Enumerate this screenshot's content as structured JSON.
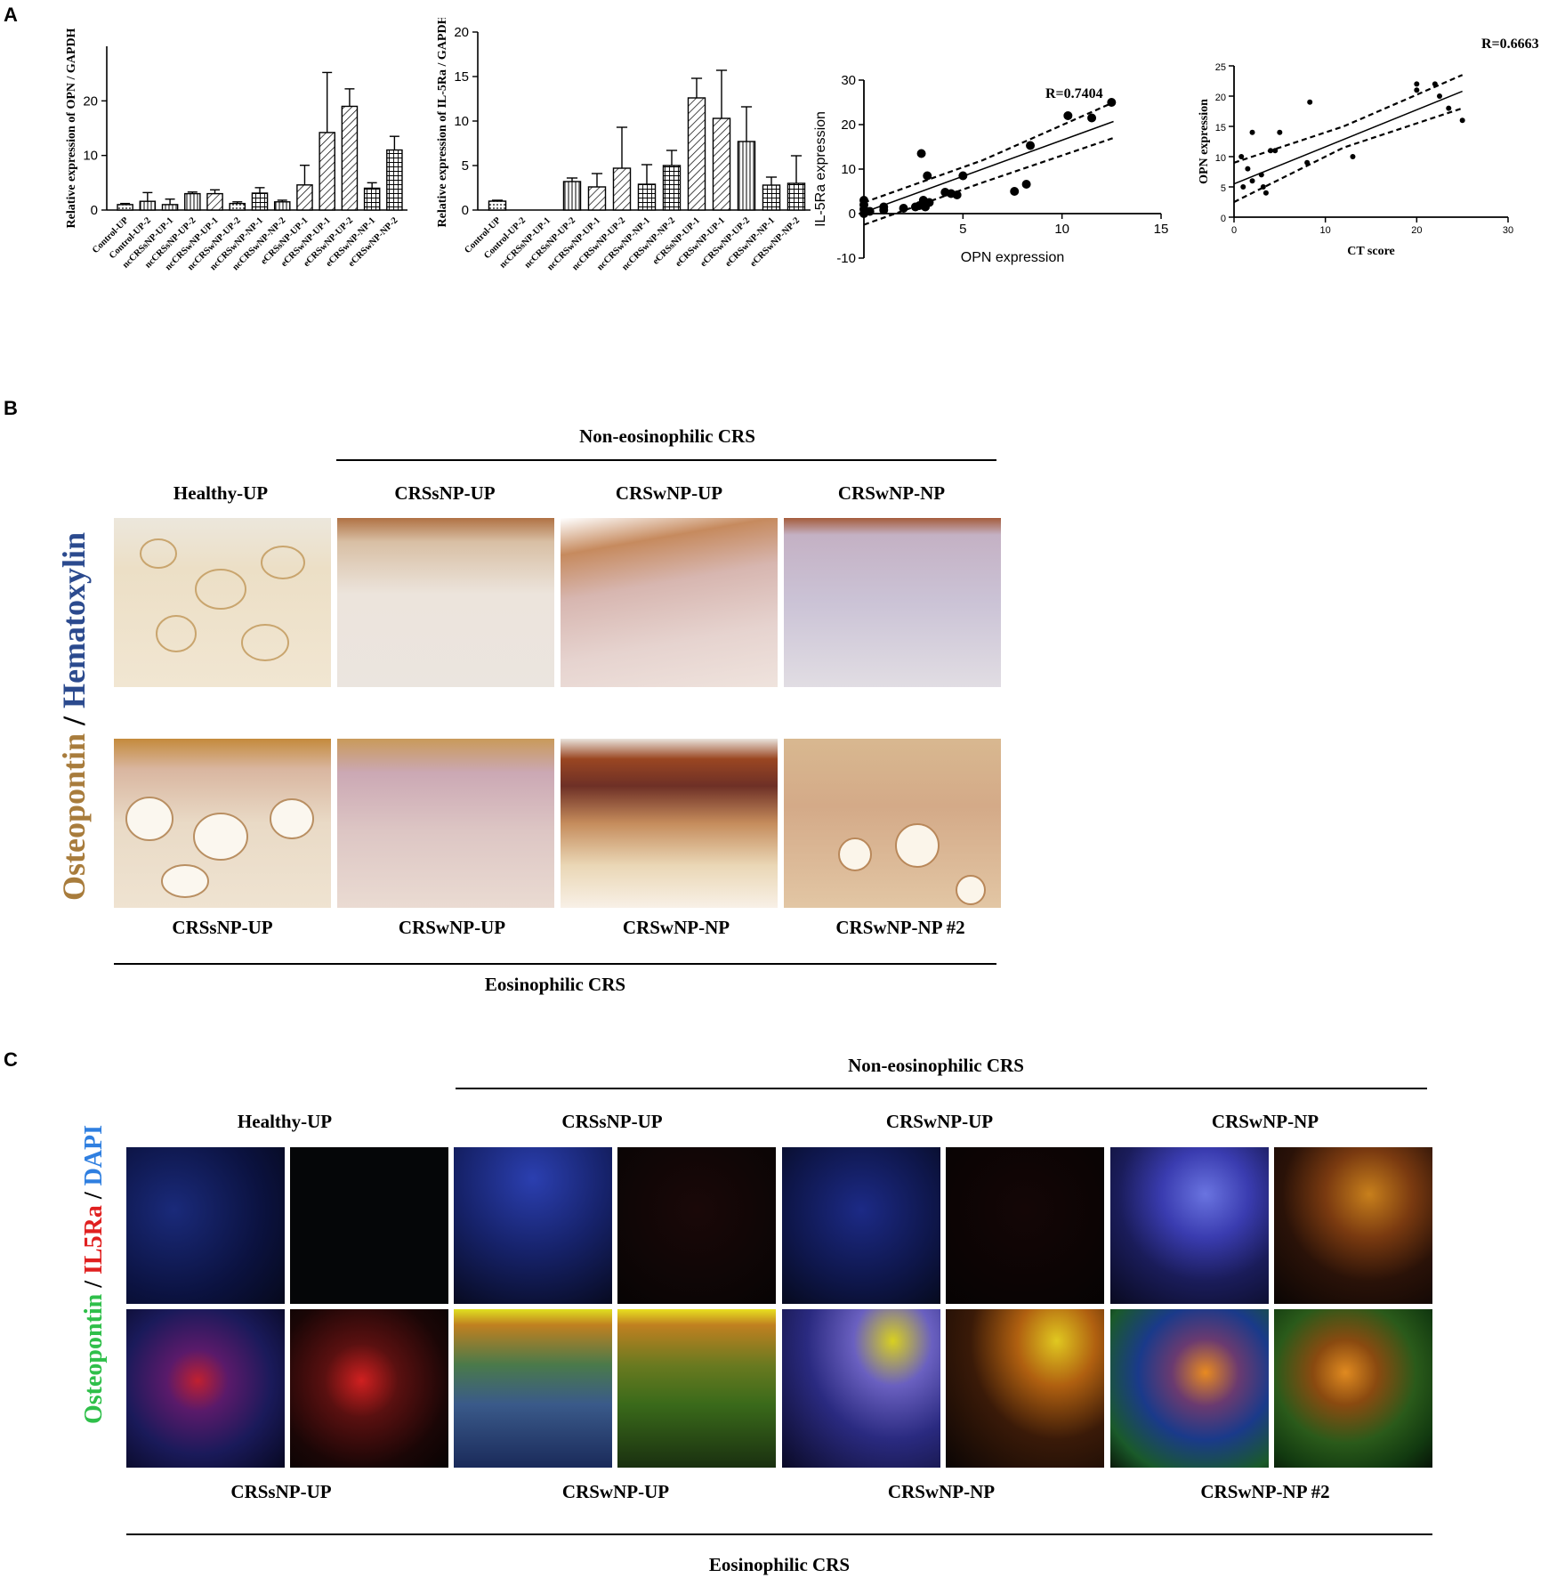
{
  "panels": {
    "a": "A",
    "b": "B",
    "c": "C"
  },
  "chart_data": [
    {
      "type": "bar",
      "ylabel": "Relative expression of OPN / GAPDH",
      "ylim": [
        0,
        30
      ],
      "yticks": [
        0,
        10,
        20
      ],
      "categories": [
        "Control-UP",
        "Control-UP-2",
        "ncCRSsNP-UP-1",
        "ncCRSsNP-UP-2",
        "ncCRSwNP-UP-1",
        "ncCRSwNP-UP-2",
        "ncCRSwNP-NP-1",
        "ncCRSwNP-NP-2",
        "eCRSsNP-UP-1",
        "eCRSwNP-UP-1",
        "eCRSwNP-UP-2",
        "eCRSwNP-NP-1",
        "eCRSwNP-NP-2"
      ],
      "values": [
        1.0,
        1.6,
        1.0,
        3.0,
        3.0,
        1.2,
        3.1,
        1.5,
        4.6,
        14.2,
        19.0,
        4.0,
        11.0
      ],
      "errors": [
        0.2,
        1.6,
        1.0,
        0.3,
        0.7,
        0.3,
        1.0,
        0.3,
        3.6,
        11.0,
        3.2,
        1.0,
        2.5
      ],
      "patterns": [
        "dots",
        "vlines",
        "vlines",
        "vlines",
        "diag",
        "dots",
        "grid",
        "vlines",
        "diag",
        "diag",
        "diag",
        "grid",
        "grid"
      ]
    },
    {
      "type": "bar",
      "ylabel": "Relative expression of IL-5Ra / GAPDH",
      "ylim": [
        0,
        20
      ],
      "yticks": [
        0,
        5,
        10,
        15,
        20
      ],
      "categories": [
        "Control-UP",
        "Control-UP-2",
        "ncCRSsNP-UP-1",
        "ncCRSsNP-UP-2",
        "ncCRSwNP-UP-1",
        "ncCRSwNP-UP-2",
        "ncCRSwNP-NP-1",
        "ncCRSwNP-NP-2",
        "eCRSsNP-UP-1",
        "eCRSwNP-UP-1",
        "eCRSwNP-UP-2",
        "eCRSwNP-NP-1",
        "eCRSwNP-NP-2"
      ],
      "values": [
        1.0,
        0,
        0,
        3.2,
        2.6,
        4.7,
        2.9,
        5.0,
        12.6,
        10.3,
        7.7,
        2.8,
        3.0
      ],
      "errors": [
        0.1,
        0,
        0,
        0.4,
        1.5,
        4.6,
        2.2,
        1.7,
        2.2,
        5.4,
        3.9,
        0.9,
        3.1
      ],
      "patterns": [
        "dots",
        "none",
        "none",
        "vlines",
        "diag",
        "diag",
        "grid",
        "grid",
        "diag",
        "diag",
        "vlines",
        "grid",
        "grid"
      ]
    },
    {
      "type": "scatter",
      "xlabel": "OPN expression",
      "ylabel": "IL-5Ra expression",
      "annotation": "R=0.7404",
      "xlim": [
        0,
        15
      ],
      "ylim": [
        -10,
        30
      ],
      "xticks": [
        5,
        10,
        15
      ],
      "yticks": [
        -10,
        0,
        10,
        20,
        30
      ],
      "points": [
        [
          0,
          0
        ],
        [
          0,
          1
        ],
        [
          0,
          2
        ],
        [
          0,
          3
        ],
        [
          0.3,
          0.5
        ],
        [
          1,
          0.8
        ],
        [
          1,
          1.5
        ],
        [
          2,
          1.2
        ],
        [
          2.6,
          1.5
        ],
        [
          2.8,
          1.8
        ],
        [
          3,
          3
        ],
        [
          3.1,
          1.5
        ],
        [
          3.3,
          2.5
        ],
        [
          2.9,
          13.5
        ],
        [
          3.2,
          8.5
        ],
        [
          4.1,
          4.8
        ],
        [
          4.4,
          4.5
        ],
        [
          4.7,
          4.2
        ],
        [
          5,
          8.5
        ],
        [
          7.6,
          5
        ],
        [
          8.2,
          6.6
        ],
        [
          8.4,
          15.3
        ],
        [
          10.3,
          22
        ],
        [
          11.5,
          21.5
        ],
        [
          12.5,
          25
        ]
      ],
      "fit": [
        [
          0,
          0.3
        ],
        [
          12.6,
          20.7
        ]
      ],
      "ci_upper": [
        [
          0,
          2.5
        ],
        [
          6,
          12
        ],
        [
          12.6,
          25
        ]
      ],
      "ci_lower": [
        [
          0,
          -2.5
        ],
        [
          6,
          7
        ],
        [
          12.6,
          17
        ]
      ]
    },
    {
      "type": "scatter",
      "xlabel": "CT score",
      "ylabel": "OPN expression",
      "annotation": "R=0.6663",
      "xlim": [
        0,
        30
      ],
      "ylim": [
        0,
        25
      ],
      "xticks": [
        0,
        10,
        20,
        30
      ],
      "yticks": [
        0,
        5,
        10,
        15,
        20,
        25
      ],
      "points": [
        [
          0.8,
          10
        ],
        [
          1,
          5
        ],
        [
          1.5,
          8
        ],
        [
          2,
          6
        ],
        [
          2,
          14
        ],
        [
          3,
          7
        ],
        [
          3.2,
          5
        ],
        [
          3.5,
          4
        ],
        [
          4,
          11
        ],
        [
          4.5,
          11
        ],
        [
          5,
          14
        ],
        [
          8,
          9
        ],
        [
          8.3,
          19
        ],
        [
          13,
          10
        ],
        [
          20,
          21
        ],
        [
          20,
          22
        ],
        [
          22,
          22
        ],
        [
          22.5,
          20
        ],
        [
          23.5,
          18
        ],
        [
          25,
          16
        ]
      ],
      "fit": [
        [
          0,
          5.5
        ],
        [
          25,
          20.8
        ]
      ],
      "ci_upper": [
        [
          0,
          9
        ],
        [
          12,
          15
        ],
        [
          25,
          23.5
        ]
      ],
      "ci_lower": [
        [
          0,
          2.5
        ],
        [
          12,
          11.5
        ],
        [
          25,
          18
        ]
      ]
    }
  ],
  "panel_b": {
    "stain_title_1": "Osteopontin",
    "stain_title_sep": " / ",
    "stain_title_2": "Hematoxylin",
    "group_top": "Non-eosinophilic CRS",
    "group_bottom": "Eosinophilic CRS",
    "top_labels": [
      "Healthy-UP",
      "CRSsNP-UP",
      "CRSwNP-UP",
      "CRSwNP-NP"
    ],
    "bottom_labels": [
      "CRSsNP-UP",
      "CRSwNP-UP",
      "CRSwNP-NP",
      "CRSwNP-NP  #2"
    ]
  },
  "panel_c": {
    "stain_title_1": "Osteopontin",
    "stain_title_sep1": " / ",
    "stain_title_2": "IL5Ra",
    "stain_title_sep2": " / ",
    "stain_title_3": "DAPI",
    "group_top": "Non-eosinophilic CRS",
    "group_bottom": "Eosinophilic CRS",
    "top_labels": [
      "Healthy-UP",
      "CRSsNP-UP",
      "CRSwNP-UP",
      "CRSwNP-NP"
    ],
    "bottom_labels": [
      "CRSsNP-UP",
      "CRSwNP-UP",
      "CRSwNP-NP",
      "CRSwNP-NP  #2"
    ]
  }
}
